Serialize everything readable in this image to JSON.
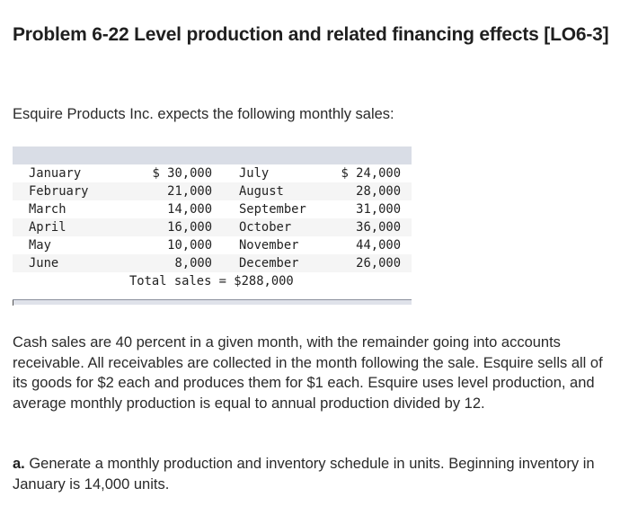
{
  "title": "Problem 6-22 Level production and related financing effects [LO6-3]",
  "intro": "Esquire Products Inc. expects the following monthly sales:",
  "sales_table": {
    "rows": [
      {
        "month1": "January",
        "value1": "$ 30,000",
        "month2": "July",
        "value2": "$ 24,000"
      },
      {
        "month1": "February",
        "value1": "21,000",
        "month2": "August",
        "value2": "28,000"
      },
      {
        "month1": "March",
        "value1": "14,000",
        "month2": "September",
        "value2": "31,000"
      },
      {
        "month1": "April",
        "value1": "16,000",
        "month2": "October",
        "value2": "36,000"
      },
      {
        "month1": "May",
        "value1": "10,000",
        "month2": "November",
        "value2": "44,000"
      },
      {
        "month1": "June",
        "value1": "8,000",
        "month2": "December",
        "value2": "26,000"
      }
    ],
    "total": "Total sales = $288,000"
  },
  "paragraph": "Cash sales are 40 percent in a given month, with the remainder going into accounts receivable. All receivables are collected in the month following the sale. Esquire sells all of its goods for $2 each and produces them for $1 each. Esquire uses level production, and average monthly production is equal to annual production divided by 12.",
  "part_a": {
    "label": "a.",
    "text": " Generate a monthly production and inventory schedule in units. Beginning inventory in January is 14,000 units."
  }
}
